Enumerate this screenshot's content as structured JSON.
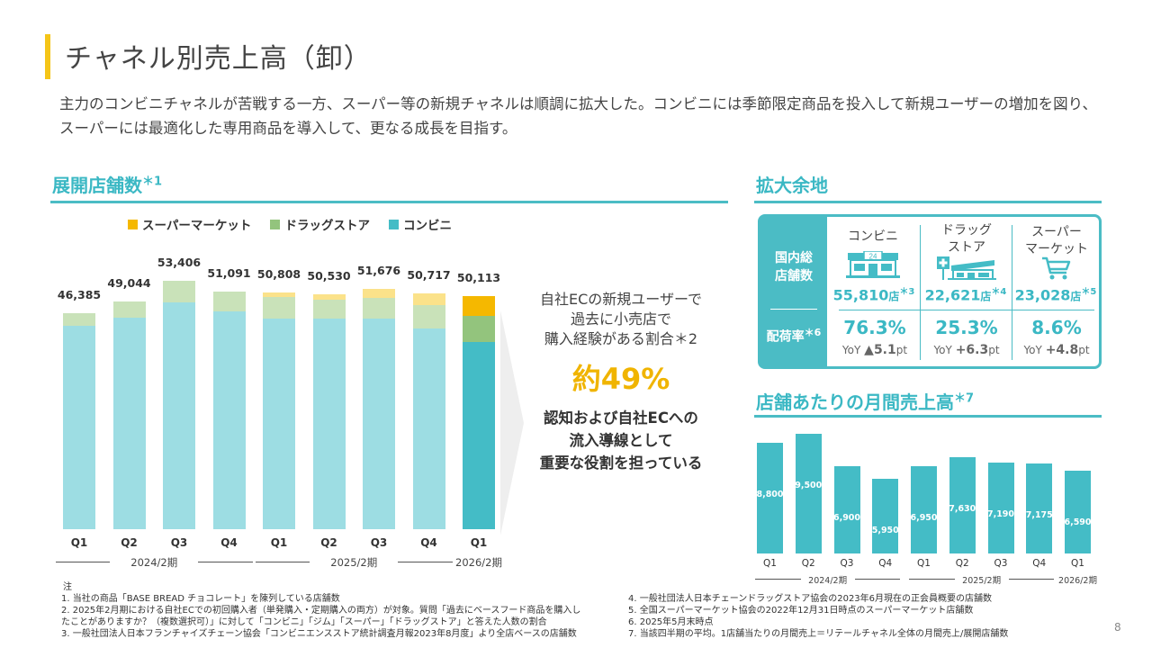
{
  "title": "チャネル別売上高（卸）",
  "lead": "主力のコンビニチャネルが苦戦する一方、スーパー等の新規チャネルは順調に拡大した。コンビニには季節限定商品を投入して新規ユーザーの増加を図り、スーパーには最適化した専用商品を導入して、更なる成長を目指す。",
  "stores_section": {
    "title": "展開店舗数",
    "sup": "＊1"
  },
  "room_section": {
    "title": "拡大余地"
  },
  "monthly_section": {
    "title": "店舗あたりの月間売上高",
    "sup": "＊7"
  },
  "colors": {
    "accent": "#4bbcc5",
    "yellow": "#f5b800",
    "green": "#93c47d",
    "teal": "#44bcc6",
    "yellow_light": "#fbe28a",
    "green_light": "#c9e2b9",
    "teal_light": "#9ddde3"
  },
  "chart_data": [
    {
      "type": "bar",
      "stacked": true,
      "title": "展開店舗数",
      "categories": [
        "Q1",
        "Q2",
        "Q3",
        "Q4",
        "Q1",
        "Q2",
        "Q3",
        "Q4",
        "Q1"
      ],
      "periods": [
        {
          "label": "2024/2期",
          "span": [
            0,
            3
          ]
        },
        {
          "label": "2025/2期",
          "span": [
            4,
            7
          ]
        },
        {
          "label": "2026/2期",
          "span": [
            8,
            8
          ]
        }
      ],
      "totals": [
        "46,385",
        "49,044",
        "53,406",
        "51,091",
        "50,808",
        "50,530",
        "51,676",
        "50,717",
        "50,113"
      ],
      "series": [
        {
          "name": "コンビニ",
          "values": [
            43800,
            45400,
            48700,
            46800,
            45300,
            45200,
            45300,
            43100,
            40300
          ]
        },
        {
          "name": "ドラッグストア",
          "values": [
            2585,
            3644,
            4706,
            4291,
            4558,
            4180,
            4376,
            5117,
            5613
          ]
        },
        {
          "name": "スーパーマーケット",
          "values": [
            0,
            0,
            0,
            0,
            950,
            1150,
            2000,
            2500,
            4200
          ]
        }
      ],
      "ylim": [
        0,
        53406
      ],
      "legend": [
        "スーパーマーケット",
        "ドラッグストア",
        "コンビニ"
      ]
    },
    {
      "type": "bar",
      "title": "店舗あたりの月間売上高",
      "categories": [
        "Q1",
        "Q2",
        "Q3",
        "Q4",
        "Q1",
        "Q2",
        "Q3",
        "Q4",
        "Q1"
      ],
      "periods": [
        {
          "label": "2024/2期",
          "span": [
            0,
            3
          ]
        },
        {
          "label": "2025/2期",
          "span": [
            4,
            7
          ]
        },
        {
          "label": "2026/2期",
          "span": [
            8,
            8
          ]
        }
      ],
      "values": [
        8800,
        9500,
        6900,
        5950,
        6950,
        7630,
        7190,
        7175,
        6590
      ],
      "labels": [
        "8,800",
        "9,500",
        "6,900",
        "5,950",
        "6,950",
        "7,630",
        "7,190",
        "7,175",
        "6,590"
      ],
      "ylim": [
        0,
        9500
      ]
    }
  ],
  "callout": {
    "text_lines": [
      "自社ECの新規ユーザーで",
      "過去に小売店で",
      "購入経験がある割合＊2"
    ],
    "big": "約49%",
    "bottom_lines": [
      "認知および自社ECへの",
      "流入導線として",
      "重要な役割を担っている"
    ]
  },
  "room": {
    "row1_label_lines": [
      "国内総",
      "店舗数"
    ],
    "row2_label": "配荷率",
    "row2_sup": "＊6",
    "columns": [
      {
        "name_lines": [
          "コンビニ"
        ],
        "icon": "convenience-store-icon",
        "icon_text": "24",
        "count": "55,810",
        "unit": "店",
        "sup": "＊3",
        "rate": "76.3%",
        "yoy_prefix": "YoY",
        "yoy": "▲5.1",
        "yoy_unit": "pt"
      },
      {
        "name_lines": [
          "ドラッグ",
          "ストア"
        ],
        "icon": "drugstore-icon",
        "count": "22,621",
        "unit": "店",
        "sup": "＊4",
        "rate": "25.3%",
        "yoy_prefix": "YoY",
        "yoy": "+6.3",
        "yoy_unit": "pt"
      },
      {
        "name_lines": [
          "スーパー",
          "マーケット"
        ],
        "icon": "cart-icon",
        "count": "23,028",
        "unit": "店",
        "sup": "＊5",
        "rate": "8.6%",
        "yoy_prefix": "YoY",
        "yoy": "+4.8",
        "yoy_unit": "pt"
      }
    ]
  },
  "notes": {
    "head": "注",
    "left": [
      "1.  当社の商品「BASE BREAD チョコレート」を陳列している店舗数",
      "2.  2025年2月期における自社ECでの初回購入者（単発購入・定期購入の両方）が対象。質問「過去にベースフード商品を購入し",
      "     たことがありますか？（複数選択可）」に対して「コンビニ」「ジム」「スーパー」「ドラッグストア」と答えた人数の割合",
      "3.  一般社団法人日本フランチャイズチェーン協会「コンビニエンスストア統計調査月報2023年8月度」より全店ベースの店舗数"
    ],
    "right": [
      "4.  一般社団法人日本チェーンドラッグストア協会の2023年6月現在の正会員概要の店舗数",
      "5.  全国スーパーマーケット協会の2022年12月31日時点のスーパーマーケット店舗数",
      "6.  2025年5月末時点",
      "7.  当該四半期の平均。1店舗当たりの月間売上＝リテールチャネル全体の月間売上/展開店舗数"
    ]
  },
  "page_number": "8"
}
